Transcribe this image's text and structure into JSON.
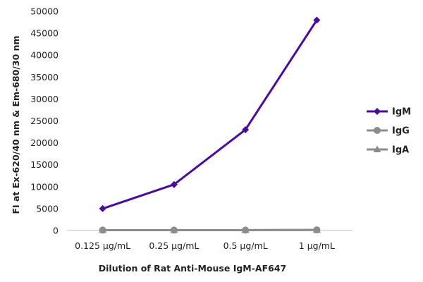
{
  "chart_data": {
    "type": "line",
    "title": "",
    "xlabel": "Dilution of Rat Anti-Mouse IgM-AF647",
    "ylabel": "FI at Ex-620/40 nm & Em-680/30 nm",
    "categories": [
      "0.125 µg/mL",
      "0.25 µg/mL",
      "0.5 µg/mL",
      "1 µg/mL"
    ],
    "ylim": [
      0,
      50000
    ],
    "yticks": [
      0,
      5000,
      10000,
      15000,
      20000,
      25000,
      30000,
      35000,
      40000,
      45000,
      50000
    ],
    "grid": false,
    "legend_position": "right",
    "series": [
      {
        "name": "IgM",
        "color": "#4B0A9E",
        "marker": "diamond",
        "values": [
          5000,
          10500,
          23000,
          48000
        ]
      },
      {
        "name": "IgG",
        "color": "#8C8C8C",
        "marker": "circle",
        "values": [
          100,
          100,
          100,
          150
        ]
      },
      {
        "name": "IgA",
        "color": "#8C8C8C",
        "marker": "triangle",
        "values": [
          80,
          80,
          80,
          120
        ]
      }
    ]
  }
}
